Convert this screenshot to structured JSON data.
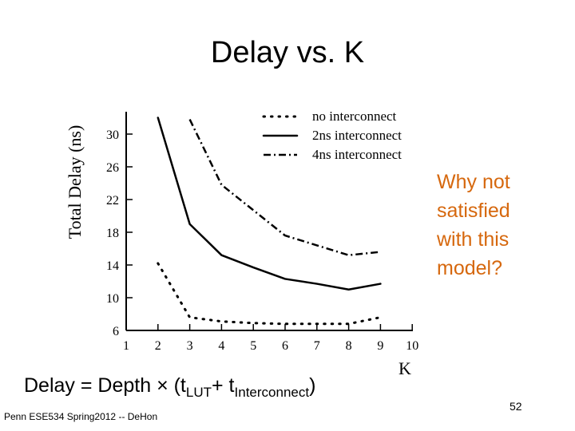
{
  "slide": {
    "title": "Delay vs. K",
    "side_note": "Why not\nsatisfied\nwith this\nmodel?",
    "formula": {
      "prefix": "Delay = Depth × (t",
      "sub1": "LUT",
      "mid": "+ t",
      "sub2": "Interconnect",
      "suffix": ")"
    },
    "footer": "Penn ESE534 Spring2012 -- DeHon",
    "page_number": "52",
    "colors": {
      "accent": "#d6680e",
      "text": "#000000"
    }
  },
  "chart_data": {
    "type": "line",
    "title": "",
    "xlabel": "K",
    "ylabel": "Total Delay (ns)",
    "xlim": [
      1,
      10
    ],
    "ylim": [
      6,
      32
    ],
    "x_ticks": [
      1,
      2,
      3,
      4,
      5,
      6,
      7,
      8,
      9,
      10
    ],
    "y_ticks": [
      6,
      10,
      14,
      18,
      22,
      26,
      30
    ],
    "grid": false,
    "legend_position": "top-right",
    "series": [
      {
        "name": "no interconnect",
        "style": "dotted",
        "x": [
          2,
          3,
          4,
          5,
          6,
          7,
          8,
          9
        ],
        "y": [
          14.2,
          7.6,
          7.1,
          6.9,
          6.8,
          6.8,
          6.8,
          7.6
        ]
      },
      {
        "name": "2ns interconnect",
        "style": "solid",
        "x": [
          2,
          3,
          4,
          5,
          6,
          7,
          8,
          9
        ],
        "y": [
          32.0,
          19.0,
          15.2,
          13.7,
          12.3,
          11.7,
          11.0,
          11.7
        ]
      },
      {
        "name": "4ns interconnect",
        "style": "dash-dot",
        "x": [
          3,
          4,
          5,
          6,
          7,
          8,
          9
        ],
        "y": [
          31.8,
          23.8,
          20.7,
          17.6,
          16.4,
          15.2,
          15.6
        ]
      }
    ]
  }
}
